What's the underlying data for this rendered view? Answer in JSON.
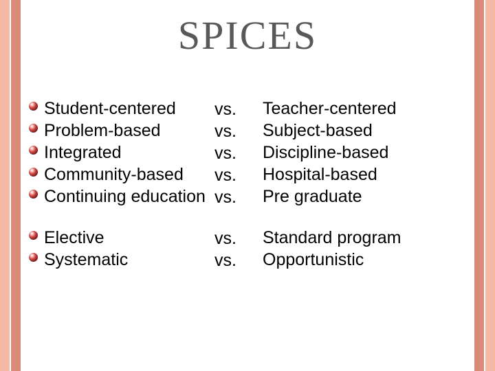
{
  "colors": {
    "bar_outer": "#f3b9a6",
    "bar_inner": "#d98b7a",
    "title_color": "#595959",
    "text_color": "#000000"
  },
  "typography": {
    "title_fontsize": 58,
    "body_fontsize": 25,
    "title_font": "Georgia, 'Times New Roman', serif",
    "body_font": "Arial, sans-serif"
  },
  "title": "SPICES",
  "vs_label": "vs.",
  "rows": [
    {
      "left": "Student-centered",
      "right": "Teacher-centered",
      "gap_before": false
    },
    {
      "left": "Problem-based",
      "right": "Subject-based",
      "gap_before": false
    },
    {
      "left": "Integrated",
      "right": "Discipline-based",
      "gap_before": false
    },
    {
      "left": "Community-based",
      "right": "Hospital-based",
      "gap_before": false
    },
    {
      "left": "Continuing education",
      "right": "Pre graduate",
      "gap_before": false
    },
    {
      "left": "Elective",
      "right": "Standard program",
      "gap_before": true
    },
    {
      "left": "Systematic",
      "right": "Opportunistic",
      "gap_before": false
    }
  ]
}
